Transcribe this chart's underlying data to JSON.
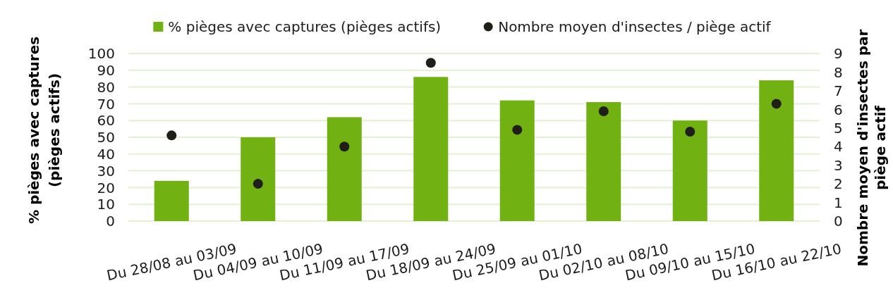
{
  "chart_data": {
    "type": "bar",
    "categories": [
      "Du 28/08 au 03/09",
      "Du 04/09 au 10/09",
      "Du 11/09 au 17/09",
      "Du 18/09 au 24/09",
      "Du 25/09 au 01/10",
      "Du 02/10 au 08/10",
      "Du 09/10 au 15/10",
      "Du 16/10 au 22/10"
    ],
    "series": [
      {
        "name": "% pièges avec captures (pièges actifs)",
        "color": "#71b212",
        "values": [
          24,
          50,
          62,
          86,
          72,
          71,
          60,
          84
        ]
      },
      {
        "name": "Nombre moyen d'insectes / piège actif",
        "type": "scatter",
        "axis": "y2",
        "color": "#1f1f17",
        "values": [
          4.6,
          2.0,
          4.0,
          8.5,
          4.9,
          5.9,
          4.8,
          6.3
        ]
      }
    ],
    "ylabel": "% pièges avec captures (pièges actifs)",
    "y2label": "Nombre moyen d'insectes par piège actif",
    "ylim": [
      0,
      100
    ],
    "yticks": [
      0,
      10,
      20,
      30,
      40,
      50,
      60,
      70,
      80,
      90,
      100
    ],
    "y2lim": [
      0,
      9
    ],
    "y2ticks": [
      0,
      1,
      2,
      3,
      4,
      5,
      6,
      7,
      8,
      9
    ],
    "grid": "y",
    "legend": "top",
    "marker": "circle"
  }
}
